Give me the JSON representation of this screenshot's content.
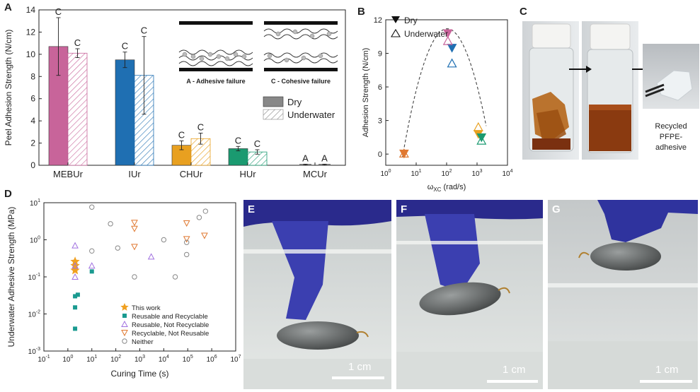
{
  "panels": {
    "A": "A",
    "B": "B",
    "C": "C",
    "D": "D",
    "E": "E",
    "F": "F",
    "G": "G"
  },
  "colors": {
    "mebur": "#c8649a",
    "iur": "#1f6fb2",
    "chur": "#e8a020",
    "hur": "#1a9a70",
    "star": "#f0a020",
    "teal": "#1a9a90",
    "purple": "#a070e0",
    "orange": "#e07830",
    "gray": "#888888"
  },
  "chart_data": [
    {
      "panel": "A",
      "type": "bar",
      "title": "",
      "ylabel": "Peel Adhesion Strength (N/cm)",
      "ylim": [
        0,
        14
      ],
      "yticks": [
        "0",
        "2",
        "4",
        "6",
        "8",
        "10",
        "12",
        "14"
      ],
      "categories": [
        "MEBUr",
        "IUr",
        "CHUr",
        "HUr",
        "MCUr"
      ],
      "series": [
        {
          "name": "Dry",
          "values": [
            10.7,
            9.5,
            1.8,
            1.5,
            0.05
          ],
          "errors": [
            2.6,
            0.7,
            0.4,
            0.2,
            0.05
          ]
        },
        {
          "name": "Underwater",
          "values": [
            10.1,
            8.1,
            2.4,
            1.2,
            0.05
          ],
          "errors": [
            0.4,
            3.5,
            0.5,
            0.2,
            0.05
          ]
        }
      ],
      "letters_dry": [
        "C",
        "C",
        "C",
        "C",
        "A"
      ],
      "letters_wet": [
        "C",
        "C",
        "C",
        "C",
        "A"
      ],
      "legend": [
        "Dry",
        "Underwater"
      ],
      "insets": [
        "A - Adhesive failure",
        "C - Cohesive failure"
      ]
    },
    {
      "panel": "B",
      "type": "scatter",
      "xlabel_main": "ω",
      "xlabel_sub": "XC",
      "xlabel_unit": " (rad/s)",
      "ylabel": "Adhesion Strength (N/cm)",
      "xlim": [
        1,
        10000
      ],
      "ylim": [
        -1,
        12
      ],
      "yticks": [
        0,
        3,
        6,
        9,
        12
      ],
      "xtick_mant": [
        "10",
        "10",
        "10",
        "10",
        "10"
      ],
      "xtick_exp": [
        "0",
        "1",
        "2",
        "3",
        "4"
      ],
      "legend": [
        "Dry",
        "Underwater"
      ],
      "dry": [
        {
          "x": 110,
          "y": 10.8,
          "c": "mebur"
        },
        {
          "x": 150,
          "y": 9.5,
          "c": "iur"
        },
        {
          "x": 4,
          "y": 0.05,
          "c": "orange"
        },
        {
          "x": 1100,
          "y": 1.8,
          "c": "chur"
        },
        {
          "x": 1400,
          "y": 1.5,
          "c": "hur"
        }
      ],
      "wet": [
        {
          "x": 110,
          "y": 10.1,
          "c": "mebur"
        },
        {
          "x": 150,
          "y": 8.1,
          "c": "iur"
        },
        {
          "x": 4,
          "y": 0.05,
          "c": "orange"
        },
        {
          "x": 1100,
          "y": 2.4,
          "c": "chur"
        },
        {
          "x": 1400,
          "y": 1.2,
          "c": "hur"
        }
      ]
    },
    {
      "panel": "D",
      "type": "scatter",
      "xlabel": "Curing Time (s)",
      "ylabel": "Underwater Adhesive Strength (MPa)",
      "xlim_exp": [
        -1,
        7
      ],
      "ylim_exp": [
        -3,
        1
      ],
      "xtick_mant": [
        "10",
        "10",
        "10",
        "10",
        "10",
        "10",
        "10",
        "10",
        "10"
      ],
      "xtick_exp": [
        "-1",
        "0",
        "1",
        "2",
        "3",
        "4",
        "5",
        "6",
        "7"
      ],
      "ytick_mant": [
        "10",
        "10",
        "10",
        "10",
        "10"
      ],
      "ytick_exp": [
        "-3",
        "-2",
        "-1",
        "0",
        "1"
      ],
      "legend": [
        "This work",
        "Reusable and Recyclable",
        "Reusable, Not Recyclable",
        "Recyclable, Not Reusable",
        "Neither"
      ],
      "this_work": [
        [
          2,
          0.26
        ],
        [
          2,
          0.2
        ],
        [
          2,
          0.15
        ]
      ],
      "reusable_recyclable": [
        [
          2,
          0.004
        ],
        [
          2,
          0.015
        ],
        [
          2,
          0.03
        ],
        [
          2.6,
          0.033
        ],
        [
          10,
          0.14
        ]
      ],
      "reusable_not_recyclable": [
        [
          2,
          0.7
        ],
        [
          2,
          0.2
        ],
        [
          2,
          0.1
        ],
        [
          10,
          0.2
        ],
        [
          3000,
          0.35
        ]
      ],
      "recyclable_not_reusable": [
        [
          600,
          2.9
        ],
        [
          600,
          2.0
        ],
        [
          600,
          0.65
        ],
        [
          90000,
          2.8
        ],
        [
          90000,
          1.05
        ],
        [
          500000,
          1.3
        ]
      ],
      "neither": [
        [
          10,
          7.6
        ],
        [
          10,
          0.5
        ],
        [
          60,
          2.7
        ],
        [
          120,
          0.6
        ],
        [
          600,
          0.1
        ],
        [
          10000,
          1.0
        ],
        [
          30000,
          0.1
        ],
        [
          90000,
          0.85
        ],
        [
          90000,
          0.4
        ],
        [
          300000,
          4.0
        ],
        [
          550000,
          5.9
        ]
      ]
    }
  ],
  "photoC": {
    "caption": [
      "Recycled",
      "PFPE-",
      "adhesive"
    ]
  },
  "scalebars": {
    "E": "1 cm",
    "F": "1 cm",
    "G": "1 cm"
  }
}
